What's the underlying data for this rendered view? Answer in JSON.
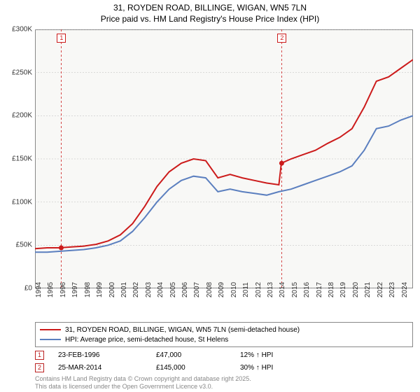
{
  "title": {
    "line1": "31, ROYDEN ROAD, BILLINGE, WIGAN, WN5 7LN",
    "line2": "Price paid vs. HM Land Registry's House Price Index (HPI)"
  },
  "chart": {
    "type": "line",
    "background_color": "#f8f8f6",
    "grid_color": "#bbbbbb",
    "border_color": "#888888",
    "title_fontsize": 12,
    "axis_label_fontsize": 10,
    "line_width": 2,
    "x": {
      "min": 1994,
      "max": 2025,
      "tick_step": 1,
      "ticks": [
        1994,
        1995,
        1996,
        1997,
        1998,
        1999,
        2000,
        2001,
        2002,
        2003,
        2004,
        2005,
        2006,
        2007,
        2008,
        2009,
        2010,
        2011,
        2012,
        2013,
        2014,
        2015,
        2016,
        2017,
        2018,
        2019,
        2020,
        2021,
        2022,
        2023,
        2024
      ]
    },
    "y": {
      "min": 0,
      "max": 300000,
      "tick_step": 50000,
      "tick_labels": [
        "£0",
        "£50K",
        "£100K",
        "£150K",
        "£200K",
        "£250K",
        "£300K"
      ]
    },
    "series": [
      {
        "name": "price_paid",
        "label": "31, ROYDEN ROAD, BILLINGE, WIGAN, WN5 7LN (semi-detached house)",
        "color": "#cc1b1b",
        "x": [
          1994,
          1995,
          1996,
          1997,
          1998,
          1999,
          2000,
          2001,
          2002,
          2003,
          2004,
          2005,
          2006,
          2007,
          2008,
          2009,
          2010,
          2011,
          2012,
          2013,
          2014,
          2014.2,
          2015,
          2016,
          2017,
          2018,
          2019,
          2020,
          2021,
          2022,
          2023,
          2024,
          2025
        ],
        "y": [
          46000,
          47000,
          47000,
          48000,
          49000,
          51000,
          55000,
          62000,
          75000,
          95000,
          118000,
          135000,
          145000,
          150000,
          148000,
          128000,
          132000,
          128000,
          125000,
          122000,
          120000,
          145000,
          150000,
          155000,
          160000,
          168000,
          175000,
          185000,
          210000,
          240000,
          245000,
          255000,
          265000
        ]
      },
      {
        "name": "hpi",
        "label": "HPI: Average price, semi-detached house, St Helens",
        "color": "#5b7fbf",
        "x": [
          1994,
          1995,
          1996,
          1997,
          1998,
          1999,
          2000,
          2001,
          2002,
          2003,
          2004,
          2005,
          2006,
          2007,
          2008,
          2009,
          2010,
          2011,
          2012,
          2013,
          2014,
          2015,
          2016,
          2017,
          2018,
          2019,
          2020,
          2021,
          2022,
          2023,
          2024,
          2025
        ],
        "y": [
          42000,
          42000,
          43000,
          44000,
          45000,
          47000,
          50000,
          55000,
          66000,
          82000,
          100000,
          115000,
          125000,
          130000,
          128000,
          112000,
          115000,
          112000,
          110000,
          108000,
          112000,
          115000,
          120000,
          125000,
          130000,
          135000,
          142000,
          160000,
          185000,
          188000,
          195000,
          200000
        ]
      }
    ],
    "sale_markers": [
      {
        "num": "1",
        "x": 1996.15,
        "y": 47000,
        "color": "#cc1b1b"
      },
      {
        "num": "2",
        "x": 2014.23,
        "y": 145000,
        "color": "#cc1b1b"
      }
    ],
    "marker_lines": [
      {
        "x": 1996.15,
        "color": "#cc1b1b",
        "dash": "3,3"
      },
      {
        "x": 2014.23,
        "color": "#cc1b1b",
        "dash": "3,3"
      }
    ]
  },
  "legend": {
    "items": [
      {
        "color": "#cc1b1b",
        "label": "31, ROYDEN ROAD, BILLINGE, WIGAN, WN5 7LN (semi-detached house)"
      },
      {
        "color": "#5b7fbf",
        "label": "HPI: Average price, semi-detached house, St Helens"
      }
    ]
  },
  "sales": [
    {
      "num": "1",
      "date": "23-FEB-1996",
      "price": "£47,000",
      "hpi_pct": "12% ↑ HPI"
    },
    {
      "num": "2",
      "date": "25-MAR-2014",
      "price": "£145,000",
      "hpi_pct": "30% ↑ HPI"
    }
  ],
  "footer": {
    "line1": "Contains HM Land Registry data © Crown copyright and database right 2025.",
    "line2": "This data is licensed under the Open Government Licence v3.0."
  }
}
